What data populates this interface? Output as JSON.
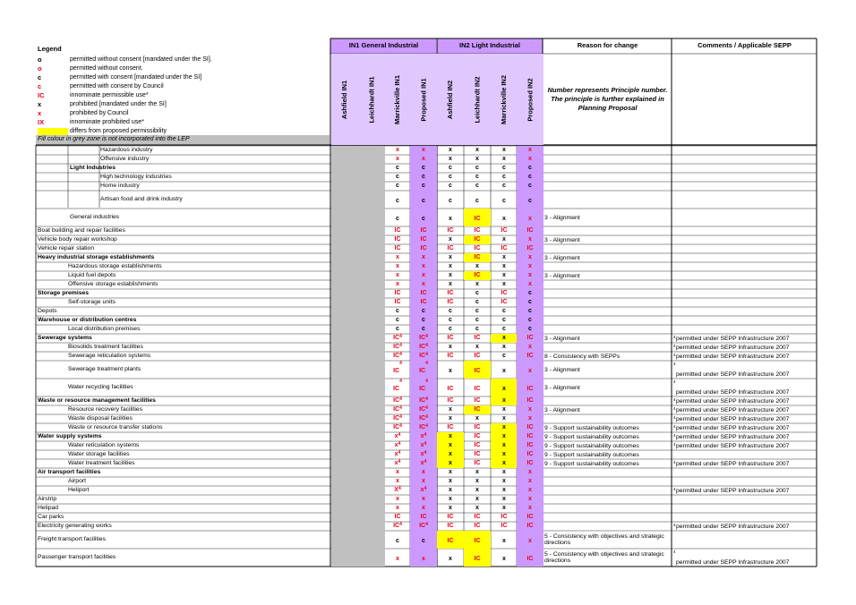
{
  "legend": {
    "title": "Legend",
    "items": [
      {
        "symbol": "o",
        "color": "#000000",
        "desc": "permitted without consent [mandated under the SI]."
      },
      {
        "symbol": "o",
        "color": "#e8001c",
        "desc": "permitted without consent."
      },
      {
        "symbol": "c",
        "color": "#000000",
        "desc": "permitted with consent [mandated under the SI]"
      },
      {
        "symbol": "c",
        "color": "#e8001c",
        "desc": "permitted with consent by Council"
      },
      {
        "symbol": "IC",
        "color": "#e8001c",
        "desc": "innominate permissible use*"
      },
      {
        "symbol": "x",
        "color": "#000000",
        "desc": "prohibited [mandated under the SI]"
      },
      {
        "symbol": "x",
        "color": "#e8001c",
        "desc": "prohibited by Council"
      },
      {
        "symbol": "IX",
        "color": "#e8001c",
        "desc": "innominate prohibited use*"
      },
      {
        "symbol": "",
        "color": "#ffff00",
        "desc": "differs from proposed permissibility"
      }
    ],
    "fill_note": "Fill colour in grey zone is not incorporated into the LEP"
  },
  "header": {
    "group1": "IN1 General Industrial",
    "group2": "IN2 Light Industrial",
    "reason": "Reason for change",
    "comments": "Comments  / Applicable SEPP",
    "columns": [
      "Ashfield IN1",
      "Leichhardt IN1",
      "Marrickville IN1",
      "Proposed IN1",
      "Ashfield IN2",
      "Leichhardt IN2",
      "Marrickville IN2",
      "Proposed IN2"
    ],
    "reason_note": "Number represents Principle number. The principle is further explained in Planning Proposal"
  },
  "colors": {
    "red": "#e8001c",
    "purple": "#cc99ff",
    "lavender": "#e0c8ff",
    "grey": "#c0c0c0",
    "yellow": "#ffff00"
  },
  "rows": [
    {
      "label": "Hazardous industry",
      "indent": 3,
      "bold": false,
      "h": 10,
      "cells": [
        null,
        null,
        "x",
        "x",
        "x",
        "x",
        "x",
        "x"
      ],
      "reason": "",
      "comment": ""
    },
    {
      "label": "Offensive industry",
      "indent": 3,
      "bold": false,
      "h": 10,
      "cells": [
        null,
        null,
        "x",
        "x",
        "x",
        "x",
        "x",
        "x"
      ],
      "reason": "",
      "comment": ""
    },
    {
      "label": "Light Industries",
      "indent": 2,
      "bold": true,
      "h": 10,
      "cells": [
        null,
        null,
        "c",
        "c",
        "c",
        "c",
        "c",
        "c"
      ],
      "reason": "",
      "comment": ""
    },
    {
      "label": "High technology industries",
      "indent": 3,
      "bold": false,
      "h": 10,
      "cells": [
        null,
        null,
        "c",
        "c",
        "c",
        "c",
        "c",
        "c"
      ],
      "reason": "",
      "comment": ""
    },
    {
      "label": "Home industry",
      "indent": 3,
      "bold": false,
      "h": 10,
      "cells": [
        null,
        null,
        "c",
        "c",
        "c",
        "c",
        "c",
        "c"
      ],
      "reason": "",
      "comment": ""
    },
    {
      "label": "Artisan food and drink industry",
      "indent": 3,
      "bold": false,
      "h": 20,
      "cells": [
        null,
        null,
        "c",
        "c",
        "c",
        "c",
        "c",
        "c"
      ],
      "reason": "",
      "comment": ""
    },
    {
      "label": "General industries",
      "indent": 2,
      "bold": false,
      "h": 20,
      "cells": [
        null,
        null,
        "c",
        "c",
        "x",
        "IC*",
        "x",
        "x"
      ],
      "reason": "3 -  Alignment",
      "comment": ""
    },
    {
      "label": "Boat building and repair facilities",
      "indent": 0,
      "bold": false,
      "h": 10,
      "cells": [
        null,
        null,
        "IC",
        "IC",
        "IC",
        "IC",
        "IC",
        "IC"
      ],
      "reason": "",
      "comment": ""
    },
    {
      "label": "Vehicle body repair workshop",
      "indent": 0,
      "bold": false,
      "h": 10,
      "cells": [
        null,
        null,
        "IC",
        "IC",
        "x",
        "IC*",
        "x",
        "x"
      ],
      "reason": "3 -  Alignment",
      "comment": ""
    },
    {
      "label": "Vehicle repair station",
      "indent": 0,
      "bold": false,
      "h": 10,
      "cells": [
        null,
        null,
        "IC",
        "IC",
        "IC",
        "IC",
        "IC",
        "IC"
      ],
      "reason": "",
      "comment": ""
    },
    {
      "label": "Heavy industrial storage establishments",
      "indent": 0,
      "bold": true,
      "h": 10,
      "cells": [
        null,
        null,
        "x",
        "x",
        "x",
        "IC*",
        "x",
        "x"
      ],
      "reason": "3 -  Alignment",
      "comment": ""
    },
    {
      "label": "Hazardous storage establishments",
      "indent": 1,
      "bold": false,
      "h": 10,
      "cells": [
        null,
        null,
        "x",
        "x",
        "x",
        "x",
        "x",
        "x"
      ],
      "reason": "",
      "comment": ""
    },
    {
      "label": "Liquid fuel depots",
      "indent": 1,
      "bold": false,
      "h": 10,
      "cells": [
        null,
        null,
        "x",
        "x",
        "x",
        "IC*",
        "x",
        "x"
      ],
      "reason": "3 -  Alignment",
      "comment": ""
    },
    {
      "label": "Offensive storage establishments",
      "indent": 1,
      "bold": false,
      "h": 10,
      "cells": [
        null,
        null,
        "x",
        "x",
        "x",
        "x",
        "x",
        "x"
      ],
      "reason": "",
      "comment": ""
    },
    {
      "label": "Storage premises",
      "indent": 0,
      "bold": true,
      "h": 10,
      "cells": [
        null,
        null,
        "IC",
        "IC",
        "IC",
        "c",
        "IC",
        "c"
      ],
      "reason": "",
      "comment": ""
    },
    {
      "label": "Self-storage units",
      "indent": 1,
      "bold": false,
      "h": 10,
      "cells": [
        null,
        null,
        "IC",
        "IC",
        "IC",
        "c",
        "IC",
        "c"
      ],
      "reason": "",
      "comment": ""
    },
    {
      "label": "Depots",
      "indent": 0,
      "bold": false,
      "h": 10,
      "cells": [
        null,
        null,
        "c",
        "c",
        "c",
        "c",
        "c",
        "c"
      ],
      "reason": "",
      "comment": ""
    },
    {
      "label": "Warehouse or distribution centres",
      "indent": 0,
      "bold": true,
      "h": 10,
      "cells": [
        null,
        null,
        "c",
        "c",
        "c",
        "c",
        "c",
        "c"
      ],
      "reason": "",
      "comment": ""
    },
    {
      "label": "Local distribution premises",
      "indent": 1,
      "bold": false,
      "h": 10,
      "cells": [
        null,
        null,
        "c",
        "c",
        "c",
        "c",
        "c",
        "c"
      ],
      "reason": "",
      "comment": ""
    },
    {
      "label": "Sewerage systems",
      "indent": 0,
      "bold": true,
      "h": 10,
      "cells": [
        null,
        null,
        "IC4",
        "IC4",
        "IC",
        "IC",
        "x*",
        "IC"
      ],
      "reason": "3 -  Alignment",
      "comment": "permitted under SEPP Infrastructure 2007"
    },
    {
      "label": "Biosolids treatment facilities",
      "indent": 1,
      "bold": false,
      "h": 10,
      "cells": [
        null,
        null,
        "IC4",
        "IC4",
        "x",
        "x",
        "x",
        "x"
      ],
      "reason": "",
      "comment": "permitted under SEPP Infrastructure 2007"
    },
    {
      "label": "Sewerage reticulation systems",
      "indent": 1,
      "bold": false,
      "h": 10,
      "cells": [
        null,
        null,
        "IC4",
        "IC4",
        "IC",
        "IC",
        "c",
        "IC"
      ],
      "reason": "8 - Consistency with SEPPs",
      "comment": "permitted under SEPP Infrastructure 2007"
    },
    {
      "label": "Sewerage treatment plants",
      "indent": 1,
      "bold": false,
      "h": 20,
      "cells": [
        null,
        null,
        "IC4",
        "IC4",
        "x",
        "IC*",
        "x",
        "x"
      ],
      "reason": "3 -  Alignment",
      "comment": "permitted under SEPP Infrastructure 2007"
    },
    {
      "label": "Water recycling facilities",
      "indent": 1,
      "bold": false,
      "h": 20,
      "cells": [
        null,
        null,
        "IC4",
        "IC4",
        "IC",
        "IC",
        "x*",
        "IC"
      ],
      "reason": "3 -  Alignment",
      "comment": "permitted under SEPP Infrastructure 2007"
    },
    {
      "label": "Waste or resource management facilities",
      "indent": 0,
      "bold": true,
      "h": 10,
      "cells": [
        null,
        null,
        "IC4",
        "IC4",
        "IC",
        "IC",
        "x*",
        "IC"
      ],
      "reason": "",
      "comment": "permitted under SEPP Infrastructure 2007"
    },
    {
      "label": "Resource recovery facilities",
      "indent": 1,
      "bold": false,
      "h": 10,
      "cells": [
        null,
        null,
        "IC4",
        "IC4",
        "x",
        "IC*",
        "x",
        "x"
      ],
      "reason": "3 -  Alignment",
      "comment": "permitted under SEPP Infrastructure 2007"
    },
    {
      "label": "Waste disposal facilities",
      "indent": 1,
      "bold": false,
      "h": 10,
      "cells": [
        null,
        null,
        "IC4",
        "IC4",
        "x",
        "x",
        "x",
        "x"
      ],
      "reason": "",
      "comment": "permitted under SEPP Infrastructure 2007"
    },
    {
      "label": "Waste or resource transfer stations",
      "indent": 1,
      "bold": false,
      "h": 10,
      "cells": [
        null,
        null,
        "IC4",
        "IC4",
        "IC",
        "IC",
        "x*",
        "IC"
      ],
      "reason": "9 - Support sustainability outcomes",
      "comment": "permitted under SEPP Infrastructure 2007"
    },
    {
      "label": "Water supply systems",
      "indent": 0,
      "bold": true,
      "h": 10,
      "cells": [
        null,
        null,
        "x4",
        "x4",
        "x*",
        "IC",
        "x*",
        "IC"
      ],
      "reason": "9 - Support sustainability outcomes",
      "comment": "permitted under SEPP Infrastructure 2007"
    },
    {
      "label": "Water reticulation systems",
      "indent": 1,
      "bold": false,
      "h": 10,
      "cells": [
        null,
        null,
        "x4",
        "x4",
        "x*",
        "IC",
        "x*",
        "IC"
      ],
      "reason": "9 - Support sustainability outcomes",
      "comment": "permitted under SEPP Infrastructure 2007"
    },
    {
      "label": "Water storage facilities",
      "indent": 1,
      "bold": false,
      "h": 10,
      "cells": [
        null,
        null,
        "x4",
        "x4",
        "x*",
        "IC",
        "x*",
        "IC"
      ],
      "reason": "9 - Support sustainability outcomes",
      "comment": ""
    },
    {
      "label": "Water treatment facilities",
      "indent": 1,
      "bold": false,
      "h": 10,
      "cells": [
        null,
        null,
        "x4",
        "x4",
        "x*",
        "IC",
        "x*",
        "IC"
      ],
      "reason": "9 - Support sustainability outcomes",
      "comment": "permitted under SEPP Infrastructure 2007"
    },
    {
      "label": "Air transport facilities",
      "indent": 0,
      "bold": true,
      "h": 10,
      "cells": [
        null,
        null,
        "x",
        "x",
        "x",
        "x",
        "x",
        "x"
      ],
      "reason": "",
      "comment": ""
    },
    {
      "label": "Airport",
      "indent": 1,
      "bold": false,
      "h": 10,
      "cells": [
        null,
        null,
        "x",
        "x",
        "x",
        "x",
        "x",
        "x"
      ],
      "reason": "",
      "comment": ""
    },
    {
      "label": "Heliport",
      "indent": 1,
      "bold": false,
      "h": 10,
      "cells": [
        null,
        null,
        "X4",
        "x4",
        "x",
        "x",
        "x",
        "x"
      ],
      "reason": "",
      "comment": "permitted under SEPP Infrastructure 2007"
    },
    {
      "label": "Airstrip",
      "indent": 0,
      "bold": false,
      "h": 10,
      "cells": [
        null,
        null,
        "x",
        "x",
        "x",
        "x",
        "x",
        "x"
      ],
      "reason": "",
      "comment": ""
    },
    {
      "label": "Helipad",
      "indent": 0,
      "bold": false,
      "h": 10,
      "cells": [
        null,
        null,
        "x",
        "x",
        "x",
        "x",
        "x",
        "x"
      ],
      "reason": "",
      "comment": ""
    },
    {
      "label": "Car parks",
      "indent": 0,
      "bold": false,
      "h": 10,
      "cells": [
        null,
        null,
        "IC",
        "IC",
        "IC",
        "IC",
        "IC",
        "IC"
      ],
      "reason": "",
      "comment": ""
    },
    {
      "label": "Electricity generating works",
      "indent": 0,
      "bold": false,
      "h": 10,
      "cells": [
        null,
        null,
        "IC4",
        "IC4",
        "IC",
        "IC",
        "IC",
        "IC"
      ],
      "reason": "",
      "comment": "permitted under SEPP Infrastructure 2007"
    },
    {
      "label": "Freight transport facilities",
      "indent": 0,
      "bold": false,
      "h": 20,
      "cells": [
        null,
        null,
        "c",
        "c",
        "IC*",
        "IC*",
        "x",
        "x"
      ],
      "reason": "5 - Consistency with objectives and strategic directions",
      "comment": ""
    },
    {
      "label": "Passenger transport facilities",
      "indent": 0,
      "bold": false,
      "h": 20,
      "cells": [
        null,
        null,
        "x",
        "x",
        "x",
        "IC*",
        "x",
        "IC"
      ],
      "reason": "5 - Consistency with objectives and strategic directions",
      "comment": "permitted under SEPP Infrastructure 2007"
    }
  ],
  "comment_sup": "4"
}
